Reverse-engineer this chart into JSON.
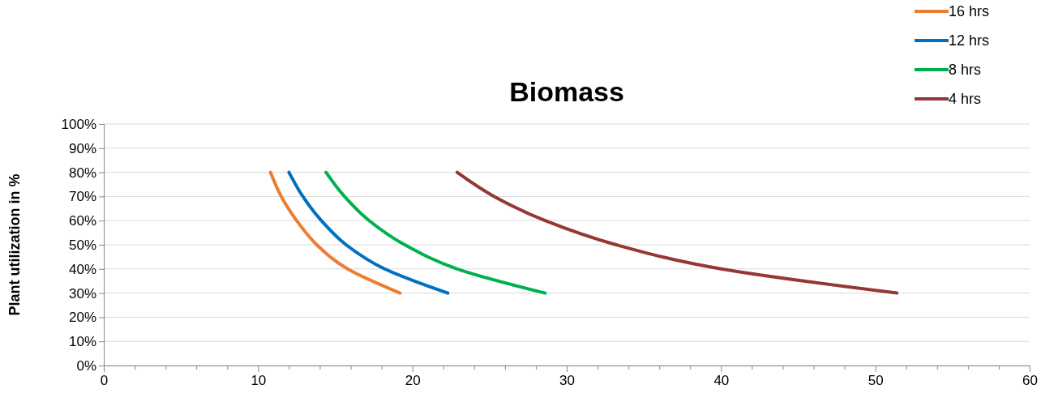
{
  "chart_data": {
    "type": "line",
    "title": "Biomass",
    "ylabel": "Plant utilization in %",
    "xlim": [
      0,
      60
    ],
    "ylim": [
      0,
      100
    ],
    "xticks": [
      0,
      {
        "value": 2,
        "label": null
      },
      {
        "value": 4,
        "label": null
      },
      {
        "value": 6,
        "label": null
      },
      {
        "value": 8,
        "label": null
      },
      10,
      {
        "value": 12,
        "label": null
      },
      {
        "value": 14,
        "label": null
      },
      {
        "value": 16,
        "label": null
      },
      {
        "value": 18,
        "label": null
      },
      20,
      {
        "value": 22,
        "label": null
      },
      {
        "value": 24,
        "label": null
      },
      {
        "value": 26,
        "label": null
      },
      {
        "value": 28,
        "label": null
      },
      30,
      {
        "value": 32,
        "label": null
      },
      {
        "value": 34,
        "label": null
      },
      {
        "value": 36,
        "label": null
      },
      {
        "value": 38,
        "label": null
      },
      40,
      {
        "value": 42,
        "label": null
      },
      {
        "value": 44,
        "label": null
      },
      {
        "value": 46,
        "label": null
      },
      {
        "value": 48,
        "label": null
      },
      50,
      {
        "value": 52,
        "label": null
      },
      {
        "value": 54,
        "label": null
      },
      {
        "value": 56,
        "label": null
      },
      {
        "value": 58,
        "label": null
      },
      60
    ],
    "yticks": [
      {
        "value": 0,
        "label": "0%"
      },
      {
        "value": 10,
        "label": "10%"
      },
      {
        "value": 20,
        "label": "20%"
      },
      {
        "value": 30,
        "label": "30%"
      },
      {
        "value": 40,
        "label": "40%"
      },
      {
        "value": 50,
        "label": "50%"
      },
      {
        "value": 60,
        "label": "60%"
      },
      {
        "value": 70,
        "label": "70%"
      },
      {
        "value": 80,
        "label": "80%"
      },
      {
        "value": 90,
        "label": "90%"
      },
      {
        "value": 100,
        "label": "100%"
      }
    ],
    "grid": "y",
    "legend": "top right",
    "marker": "none",
    "line_style": "solid",
    "series": [
      {
        "name": "16 hrs",
        "color": "#ed7d31",
        "x": [
          10.8,
          11.5,
          12.5,
          13.8,
          15.8,
          19.2
        ],
        "values": [
          80,
          70,
          60,
          50,
          40,
          30
        ]
      },
      {
        "name": "12 hrs",
        "color": "#0070c0",
        "x": [
          12.0,
          12.9,
          14.1,
          15.7,
          18.2,
          22.3
        ],
        "values": [
          80,
          70,
          60,
          50,
          40,
          30
        ]
      },
      {
        "name": "8 hrs",
        "color": "#00b050",
        "x": [
          14.4,
          15.6,
          17.2,
          19.5,
          22.9,
          28.6
        ],
        "values": [
          80,
          70,
          60,
          50,
          40,
          30
        ]
      },
      {
        "name": "4 hrs",
        "color": "#953735",
        "x": [
          22.9,
          25.3,
          28.6,
          33.2,
          40.0,
          51.4
        ],
        "values": [
          80,
          70,
          60,
          50,
          40,
          30
        ]
      }
    ]
  }
}
